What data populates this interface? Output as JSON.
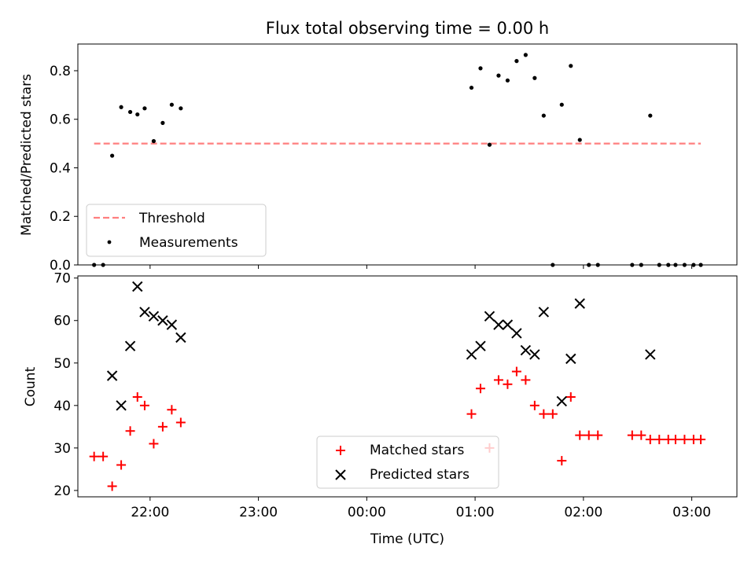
{
  "chart_data": [
    {
      "type": "scatter",
      "title": "Flux total observing time = 0.00 h",
      "xlabel": "",
      "ylabel": "Matched/Predicted stars",
      "ylim": [
        0.0,
        0.91
      ],
      "yticks": [
        "0.0",
        "0.2",
        "0.4",
        "0.6",
        "0.8"
      ],
      "ytick_values": [
        0.0,
        0.2,
        0.4,
        0.6,
        0.8
      ],
      "threshold": {
        "name": "Threshold",
        "value": 0.5,
        "x_start": "21:29",
        "x_end": "03:05",
        "color": "#ff7f7f"
      },
      "series": [
        {
          "name": "Measurements",
          "color": "#000000",
          "points": [
            [
              "21:29",
              0.0
            ],
            [
              "21:34",
              0.0
            ],
            [
              "21:39",
              0.45
            ],
            [
              "21:44",
              0.65
            ],
            [
              "21:49",
              0.63
            ],
            [
              "21:53",
              0.62
            ],
            [
              "21:57",
              0.645
            ],
            [
              "22:02",
              0.51
            ],
            [
              "22:07",
              0.585
            ],
            [
              "22:12",
              0.66
            ],
            [
              "22:17",
              0.645
            ],
            [
              "00:58",
              0.73
            ],
            [
              "01:03",
              0.81
            ],
            [
              "01:08",
              0.495
            ],
            [
              "01:13",
              0.78
            ],
            [
              "01:18",
              0.76
            ],
            [
              "01:23",
              0.84
            ],
            [
              "01:28",
              0.865
            ],
            [
              "01:33",
              0.77
            ],
            [
              "01:38",
              0.615
            ],
            [
              "01:43",
              0.0
            ],
            [
              "01:48",
              0.66
            ],
            [
              "01:53",
              0.82
            ],
            [
              "01:58",
              0.515
            ],
            [
              "02:03",
              0.0
            ],
            [
              "02:08",
              0.0
            ],
            [
              "02:27",
              0.0
            ],
            [
              "02:32",
              0.0
            ],
            [
              "02:37",
              0.615
            ],
            [
              "02:42",
              0.0
            ],
            [
              "02:47",
              0.0
            ],
            [
              "02:51",
              0.0
            ],
            [
              "02:56",
              0.0
            ],
            [
              "03:01",
              0.0
            ],
            [
              "03:05",
              0.0
            ]
          ]
        }
      ],
      "legend": {
        "placement": "lower-left",
        "entries": [
          "Threshold",
          "Measurements"
        ]
      }
    },
    {
      "type": "scatter",
      "title": "",
      "xlabel": "Time (UTC)",
      "ylabel": "Count",
      "ylim": [
        18.5,
        70.5
      ],
      "yticks": [
        "20",
        "30",
        "40",
        "50",
        "60",
        "70"
      ],
      "ytick_values": [
        20,
        30,
        40,
        50,
        60,
        70
      ],
      "xlim": [
        "21:20",
        "03:25"
      ],
      "xticks": [
        "22:00",
        "23:00",
        "00:00",
        "01:00",
        "02:00",
        "03:00"
      ],
      "series": [
        {
          "name": "Matched stars",
          "marker": "+",
          "color": "#ff0000",
          "points": [
            [
              "21:29",
              28
            ],
            [
              "21:34",
              28
            ],
            [
              "21:39",
              21
            ],
            [
              "21:44",
              26
            ],
            [
              "21:49",
              34
            ],
            [
              "21:53",
              42
            ],
            [
              "21:57",
              40
            ],
            [
              "22:02",
              31
            ],
            [
              "22:07",
              35
            ],
            [
              "22:12",
              39
            ],
            [
              "22:17",
              36
            ],
            [
              "00:58",
              38
            ],
            [
              "01:03",
              44
            ],
            [
              "01:08",
              30
            ],
            [
              "01:13",
              46
            ],
            [
              "01:18",
              45
            ],
            [
              "01:23",
              48
            ],
            [
              "01:28",
              46
            ],
            [
              "01:33",
              40
            ],
            [
              "01:38",
              38
            ],
            [
              "01:43",
              38
            ],
            [
              "01:48",
              27
            ],
            [
              "01:53",
              42
            ],
            [
              "01:58",
              33
            ],
            [
              "02:03",
              33
            ],
            [
              "02:08",
              33
            ],
            [
              "02:27",
              33
            ],
            [
              "02:32",
              33
            ],
            [
              "02:37",
              32
            ],
            [
              "02:42",
              32
            ],
            [
              "02:47",
              32
            ],
            [
              "02:51",
              32
            ],
            [
              "02:56",
              32
            ],
            [
              "03:01",
              32
            ],
            [
              "03:05",
              32
            ]
          ]
        },
        {
          "name": "Predicted stars",
          "marker": "x",
          "color": "#000000",
          "points": [
            [
              "21:39",
              47
            ],
            [
              "21:44",
              40
            ],
            [
              "21:49",
              54
            ],
            [
              "21:53",
              68
            ],
            [
              "21:57",
              62
            ],
            [
              "22:02",
              61
            ],
            [
              "22:07",
              60
            ],
            [
              "22:12",
              59
            ],
            [
              "22:17",
              56
            ],
            [
              "00:58",
              52
            ],
            [
              "01:03",
              54
            ],
            [
              "01:08",
              61
            ],
            [
              "01:13",
              59
            ],
            [
              "01:18",
              59
            ],
            [
              "01:23",
              57
            ],
            [
              "01:28",
              53
            ],
            [
              "01:33",
              52
            ],
            [
              "01:38",
              62
            ],
            [
              "01:48",
              41
            ],
            [
              "01:53",
              51
            ],
            [
              "01:58",
              64
            ],
            [
              "02:37",
              52
            ]
          ]
        }
      ],
      "legend": {
        "placement": "lower-center",
        "entries": [
          "Matched stars",
          "Predicted stars"
        ]
      }
    }
  ]
}
